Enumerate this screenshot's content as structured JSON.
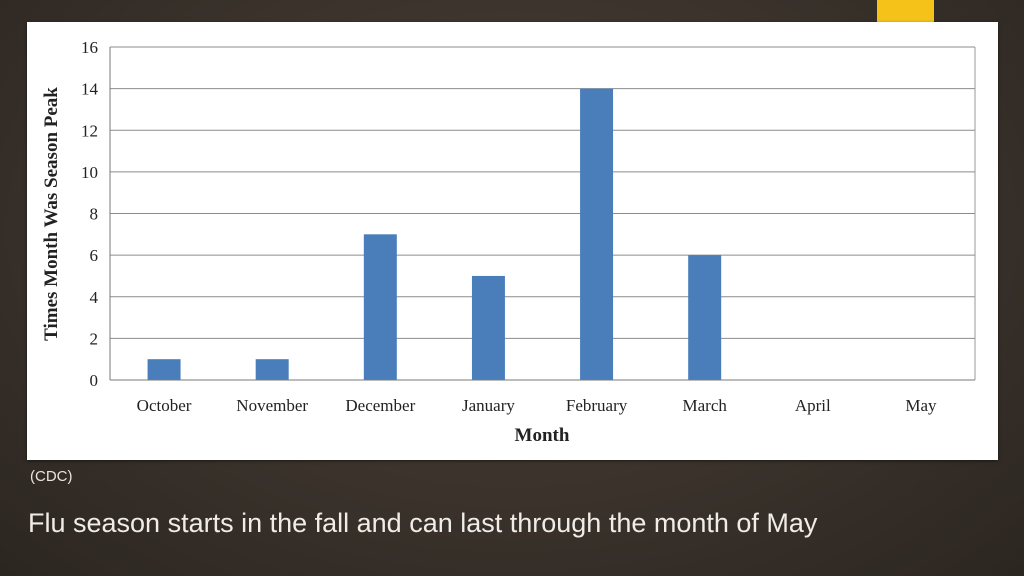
{
  "slide": {
    "source_note": "(CDC)",
    "caption": "Flu season starts in the fall and can last through the month of May"
  },
  "colors": {
    "bar": "#4a7ebb",
    "accent": "#f5c21a",
    "grid": "#8c8c8c"
  },
  "chart_data": {
    "type": "bar",
    "title": "",
    "xlabel": "Month",
    "ylabel": "Times Month Was Season Peak",
    "categories": [
      "October",
      "November",
      "December",
      "January",
      "February",
      "March",
      "April",
      "May"
    ],
    "values": [
      1,
      1,
      7,
      5,
      14,
      6,
      0,
      0
    ],
    "ylim": [
      0,
      16
    ],
    "yticks": [
      0,
      2,
      4,
      6,
      8,
      10,
      12,
      14,
      16
    ],
    "grid": true,
    "legend": "none"
  }
}
